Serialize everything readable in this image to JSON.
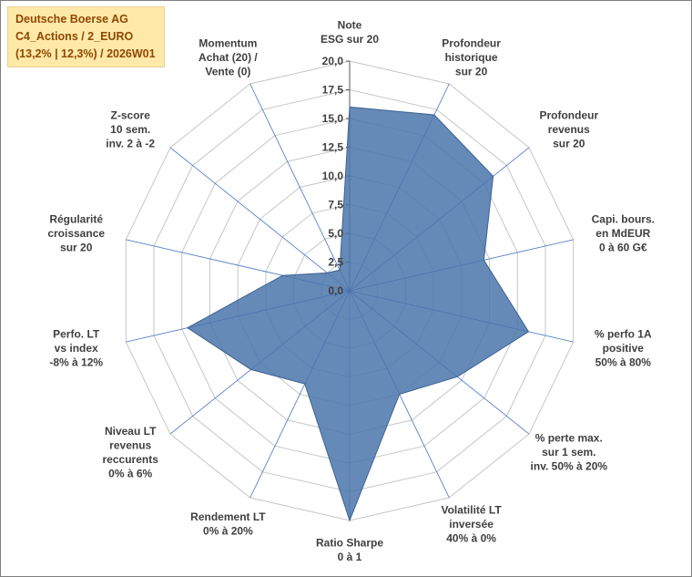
{
  "info_box": {
    "lines": [
      "Deutsche Boerse AG",
      "C4_Actions / 2_EURO",
      "(13,2% | 12,3%) / 2026W01"
    ],
    "bg_color": "#FFE9A9",
    "text_color": "#8F4700"
  },
  "chart_data": {
    "type": "radar",
    "title": "Deutsche Boerse AG — C4_Actions / 2_EURO — (13,2% | 12,3%) / 2026W01",
    "scale": {
      "min": 0,
      "max": 20,
      "step": 2.5
    },
    "tick_values": [
      0,
      2.5,
      5,
      7.5,
      10,
      12.5,
      15,
      17.5,
      20
    ],
    "tick_labels": [
      "0,0",
      "2,5",
      "5,0",
      "7,5",
      "10,0",
      "12,5",
      "15,0",
      "17,5",
      "20,0"
    ],
    "axes": [
      {
        "label_lines": [
          "Note",
          "ESG sur 20"
        ],
        "value": 16
      },
      {
        "label_lines": [
          "Profondeur",
          "historique",
          "sur 20"
        ],
        "value": 17
      },
      {
        "label_lines": [
          "Profondeur",
          "revenus",
          "sur 20"
        ],
        "value": 16
      },
      {
        "label_lines": [
          "Capi. bours.",
          "en MdEUR",
          "0 à 60 G€"
        ],
        "value": 12
      },
      {
        "label_lines": [
          "% perfo 1A",
          "positive",
          "50% à 80%"
        ],
        "value": 16
      },
      {
        "label_lines": [
          "% perte max.",
          "sur 1 sem.",
          "inv. 50% à 20%"
        ],
        "value": 12
      },
      {
        "label_lines": [
          "Volatilité LT",
          "inversée",
          "40% à 0%"
        ],
        "value": 10
      },
      {
        "label_lines": [
          "Ratio Sharpe",
          "0 à 1"
        ],
        "value": 20
      },
      {
        "label_lines": [
          "Rendement LT",
          "0% à 20%"
        ],
        "value": 9
      },
      {
        "label_lines": [
          "Niveau LT",
          "revenus",
          "reccurents",
          "0% à 6%"
        ],
        "value": 11
      },
      {
        "label_lines": [
          "Perfo. LT",
          "vs index",
          "-8% à 12%"
        ],
        "value": 14.5
      },
      {
        "label_lines": [
          "Régularité",
          "croissance",
          "sur 20"
        ],
        "value": 6
      },
      {
        "label_lines": [
          "Z-score",
          "10 sem.",
          "inv. 2 à -2"
        ],
        "value": 2.5
      },
      {
        "label_lines": [
          "Momentum",
          "Achat (20) /",
          "Vente (0)"
        ],
        "value": 2
      }
    ],
    "colors": {
      "fill": "#4B76AC",
      "fill_opacity": 0.85,
      "series_stroke": "#3A6191",
      "spoke": "#4472C4",
      "value_axis": "#595959",
      "grid": "#C6C6C6",
      "label": "#3F3F3F"
    },
    "legend": "none",
    "grid": "on"
  }
}
